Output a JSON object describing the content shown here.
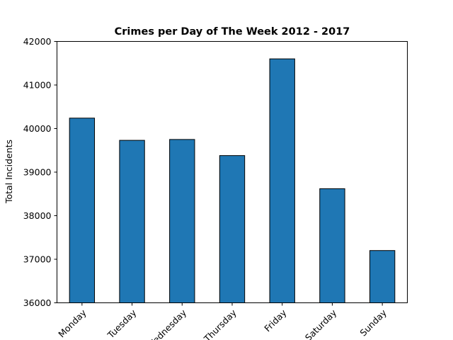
{
  "chart_data": {
    "type": "bar",
    "title": "Crimes per Day of The Week 2012 - 2017",
    "xlabel": "",
    "ylabel": "Total Incidents",
    "categories": [
      "Monday",
      "Tuesday",
      "Wednesday",
      "Thursday",
      "Friday",
      "Saturday",
      "Sunday"
    ],
    "values": [
      40240,
      39730,
      39750,
      39380,
      41600,
      38620,
      37200
    ],
    "ylim": [
      36000,
      42000
    ],
    "yticks": [
      36000,
      37000,
      38000,
      39000,
      40000,
      41000,
      42000
    ],
    "bar_color": "#1f77b4",
    "edge_color": "#000000",
    "grid": false,
    "legend": "none"
  }
}
